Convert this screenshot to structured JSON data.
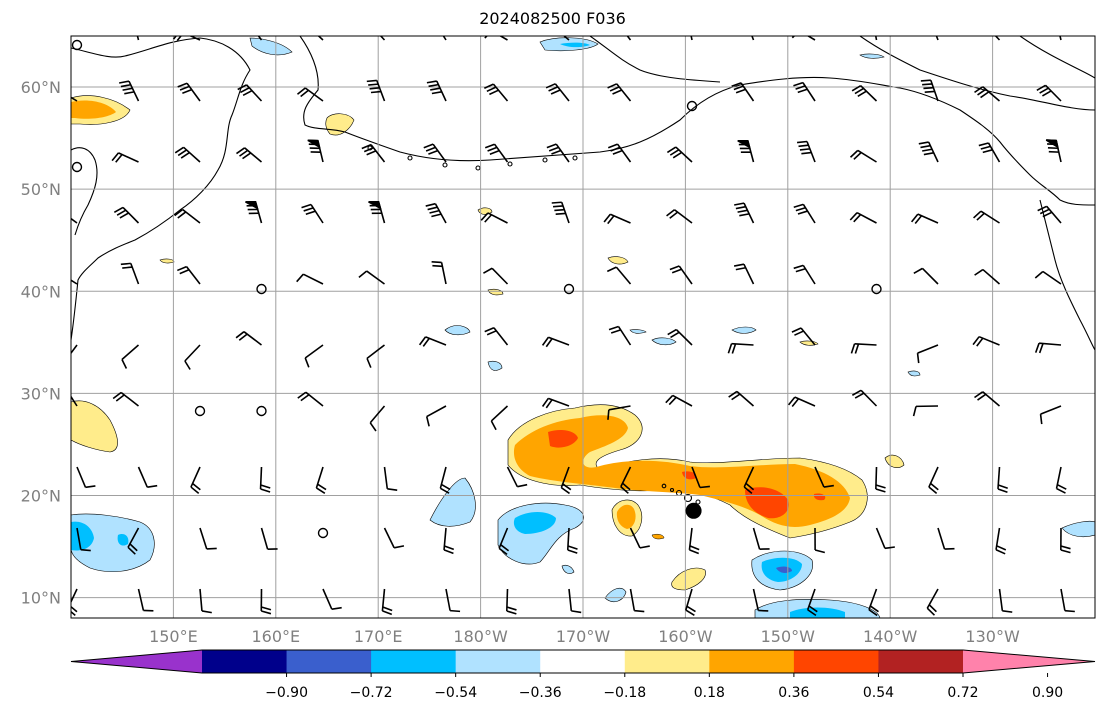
{
  "title": "2024082500 F036",
  "map": {
    "lat_ticks": [
      {
        "label": "60°N",
        "lat": 60
      },
      {
        "label": "50°N",
        "lat": 50
      },
      {
        "label": "40°N",
        "lat": 40
      },
      {
        "label": "30°N",
        "lat": 30
      },
      {
        "label": "20°N",
        "lat": 20
      },
      {
        "label": "10°N",
        "lat": 10
      }
    ],
    "lon_ticks": [
      {
        "label": "150°E",
        "lon": 150
      },
      {
        "label": "160°E",
        "lon": 160
      },
      {
        "label": "170°E",
        "lon": 170
      },
      {
        "label": "180°W",
        "lon": 180
      },
      {
        "label": "170°W",
        "lon": 190
      },
      {
        "label": "160°W",
        "lon": 200
      },
      {
        "label": "150°W",
        "lon": 210
      },
      {
        "label": "140°W",
        "lon": 220
      },
      {
        "label": "130°W",
        "lon": 230
      }
    ],
    "extent": {
      "lon_min": 140,
      "lon_max": 240,
      "lat_min": 8,
      "lat_max": 65
    },
    "storm_marker": {
      "lon": 200.8,
      "lat": 18.5
    }
  },
  "colorbar": {
    "levels": [
      "−0.90",
      "−0.72",
      "−0.54",
      "−0.36",
      "−0.18",
      "0.18",
      "0.36",
      "0.54",
      "0.72",
      "0.90"
    ],
    "colors": [
      "#9932cc",
      "#00008b",
      "#3a5fcd",
      "#00bfff",
      "#b0e2ff",
      "#ffffff",
      "#ffec8b",
      "#ffa500",
      "#ff4500",
      "#b22222",
      "#ff82ab"
    ]
  },
  "colors": {
    "land_line": "#000000",
    "grid": "#a0a0a0"
  }
}
